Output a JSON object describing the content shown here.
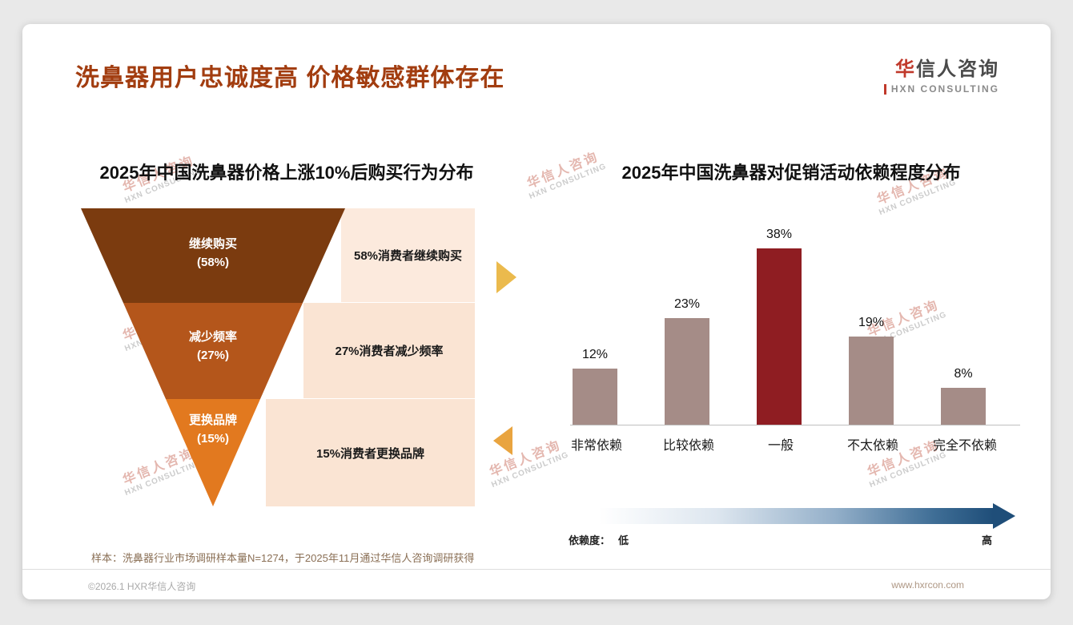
{
  "header": {
    "title": "洗鼻器用户忠诚度高 价格敏感群体存在"
  },
  "logo": {
    "name": "华信人咨询",
    "name_first": "华",
    "name_rest": "信人咨询",
    "sub": "HXN CONSULTING"
  },
  "watermark": {
    "line1": "华信人咨询",
    "line2": "HXN CONSULTING"
  },
  "colors": {
    "title": "#A23D10",
    "funnel_stage_1": "#7B3B0F",
    "funnel_stage_2": "#B4561B",
    "funnel_stage_3": "#E2791F",
    "label_block": "#FAE4D3",
    "bar": "#A58C87",
    "bar_highlight": "#8F1D22",
    "gradient_end": "#1F4E79",
    "arrow_right": "#EBBA4D",
    "arrow_left": "#E9A43F"
  },
  "chart_data": [
    {
      "type": "funnel",
      "title": "2025年中国洗鼻器价格上涨10%后购买行为分布",
      "stages": [
        {
          "label": "继续购买",
          "pct_label": "(58%)",
          "value": 58,
          "note": "58%消费者继续购买",
          "color": "#7B3B0F"
        },
        {
          "label": "减少频率",
          "pct_label": "(27%)",
          "value": 27,
          "note": "27%消费者减少频率",
          "color": "#B4561B"
        },
        {
          "label": "更换品牌",
          "pct_label": "(15%)",
          "value": 15,
          "note": "15%消费者更换品牌",
          "color": "#E2791F"
        }
      ]
    },
    {
      "type": "bar",
      "title": "2025年中国洗鼻器对促销活动依赖程度分布",
      "categories": [
        "非常依赖",
        "比较依赖",
        "一般",
        "不太依赖",
        "完全不依赖"
      ],
      "values": [
        12,
        23,
        38,
        19,
        8
      ],
      "value_labels": [
        "12%",
        "23%",
        "38%",
        "19%",
        "8%"
      ],
      "highlight_index": 2,
      "bar_color": "#A58C87",
      "highlight_color": "#8F1D22",
      "ylim": [
        0,
        40
      ],
      "grid": false,
      "axis_note": {
        "prefix": "依赖度：",
        "low": "低",
        "high": "高"
      }
    }
  ],
  "page": {
    "sample_note": "样本：洗鼻器行业市场调研样本量N=1274，于2025年11月通过华信人咨询调研获得",
    "footer_left": "©2026.1 HXR华信人咨询",
    "footer_right": "www.hxrcon.com"
  }
}
